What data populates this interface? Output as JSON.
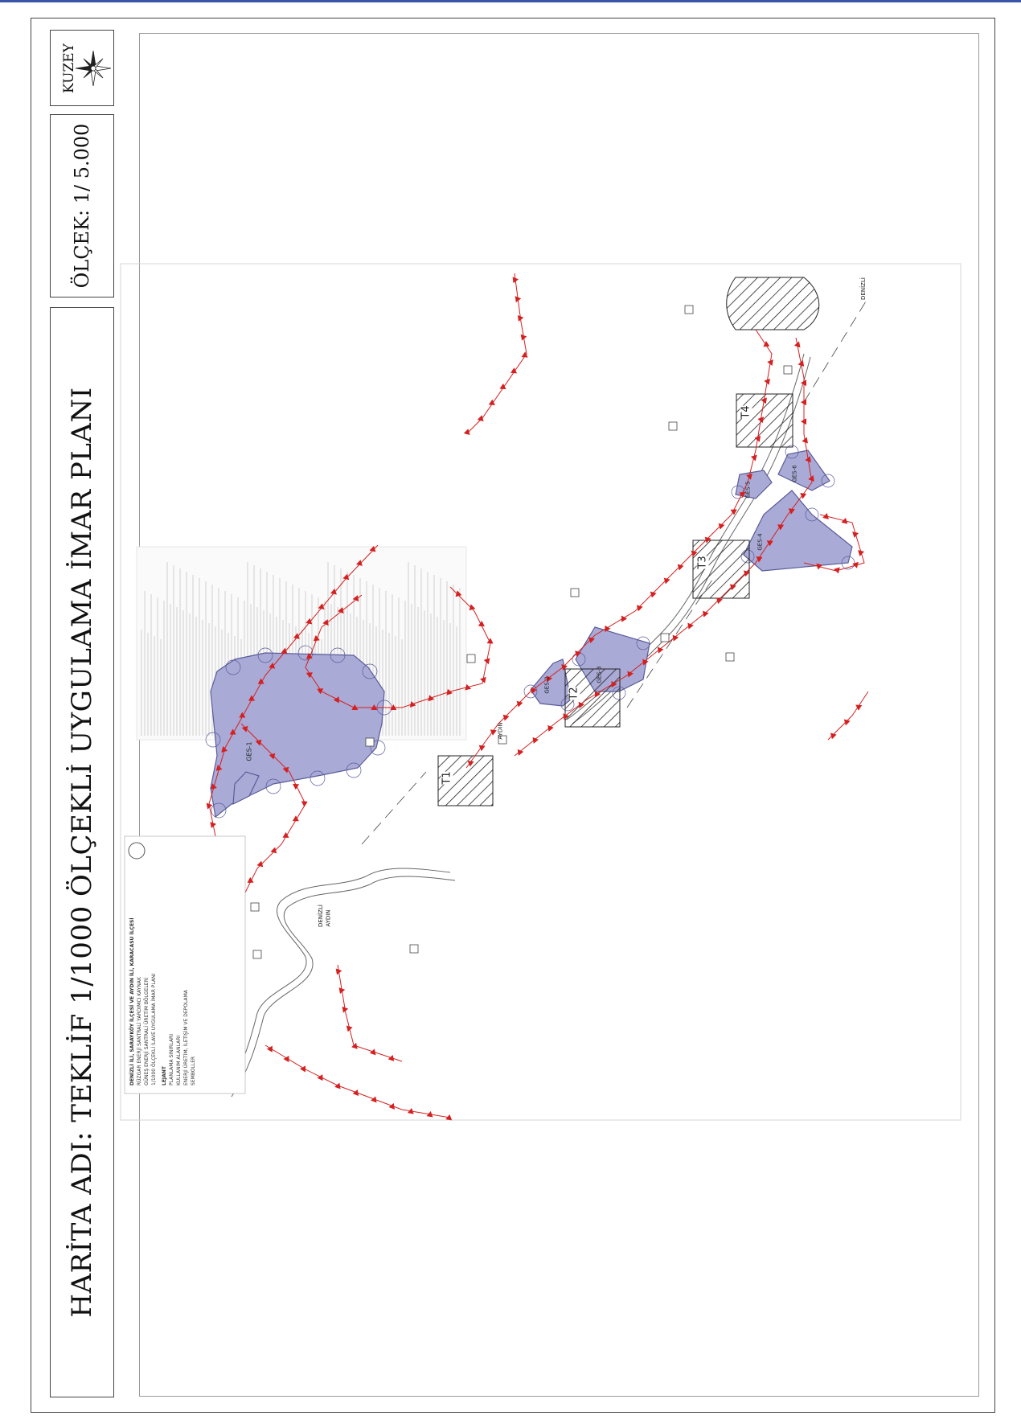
{
  "title": "HARİTA ADI: TEKLİF 1/1000 ÖLÇEKLİ UYGULAMA İMAR PLANI",
  "scale": "ÖLÇEK: 1/ 5.000",
  "north_label": "KUZEY",
  "colors": {
    "boundary": "#d42020",
    "parcel_fill": "#a9aad6",
    "parcel_stroke": "#5a5c9a",
    "hatch": "#222222",
    "frame": "#3b55a6"
  },
  "legend": {
    "plan_header": "DENİZLİ İLİ, SARAYKÖY İLÇESİ VE AYDIN İLİ, KARACASU İLÇESİ",
    "plan_subtitle_1": "RÜZGAR ENERJİ SANTRALİ YARDIMCI KAYNAK",
    "plan_subtitle_2": "GÜNEŞ ENERJİ SANTRALİ ÜRETİM BÖLGELERİ",
    "plan_subtitle_3": "1/1000 ÖLÇEKLİ İLAVE UYGULAMA İMAR PLANI",
    "section_lejant": "LEJANT",
    "section_sinirlar": "PLANLAMA SINIRLARI",
    "section_alanlar": "KULLANIM ALANLARI",
    "section_teknik": "ENERJİ ÜRETİM, İLETİŞİM VE DEPOLAMA",
    "section_sembol": "SEMBOLLER"
  },
  "map_labels": {
    "parcels": [
      "GES-1",
      "GES-2",
      "GES-3",
      "GES-4",
      "GES-5",
      "GES-6"
    ],
    "turbines": [
      "T1",
      "T2",
      "T3",
      "T4"
    ],
    "roads": [
      "DENİZLİ",
      "AYDIN",
      "DENİZLİ",
      "AYDIN"
    ]
  }
}
